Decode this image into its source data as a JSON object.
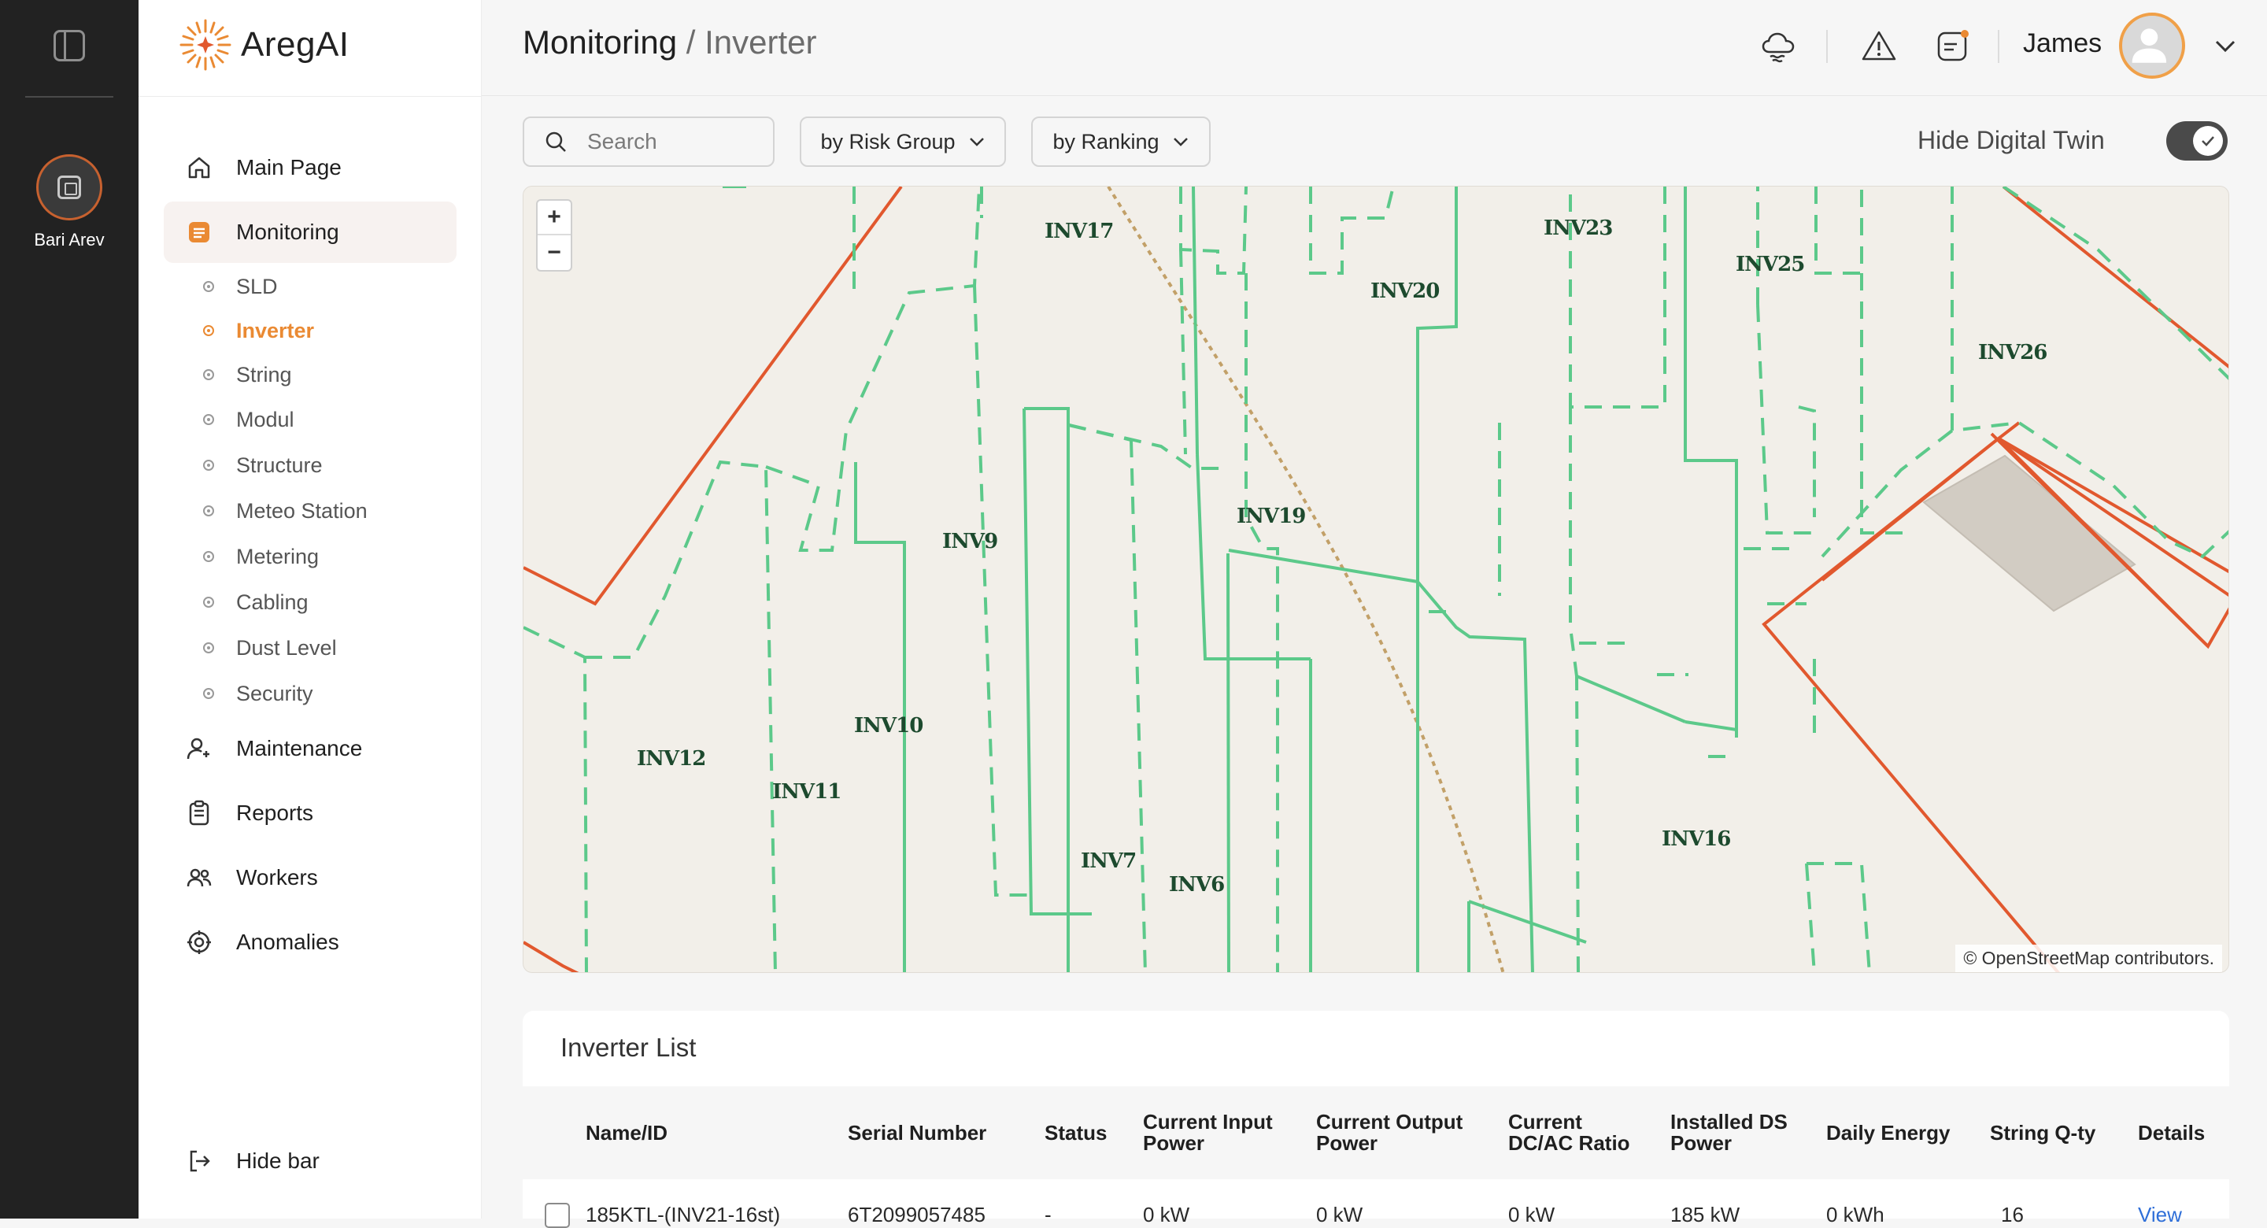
{
  "rail": {
    "plant_name": "Bari Arev"
  },
  "brand": {
    "name": "AregAI",
    "accent": "#ea8a33"
  },
  "sidebar": {
    "items": [
      {
        "label": "Main Page",
        "icon": "home-icon"
      },
      {
        "label": "Monitoring",
        "icon": "monitoring-icon",
        "active": true
      },
      {
        "label": "Maintenance",
        "icon": "maintenance-icon"
      },
      {
        "label": "Reports",
        "icon": "reports-icon"
      },
      {
        "label": "Workers",
        "icon": "workers-icon"
      },
      {
        "label": "Anomalies",
        "icon": "anomalies-icon"
      }
    ],
    "monitoring_sub": [
      "SLD",
      "Inverter",
      "String",
      "Modul",
      "Structure",
      "Meteo Station",
      "Metering",
      "Cabling",
      "Dust Level",
      "Security"
    ],
    "active_sub": "Inverter",
    "hide_bar": "Hide bar"
  },
  "header": {
    "section": "Monitoring",
    "separator": " / ",
    "page": "Inverter",
    "user": "James",
    "icons": [
      "weather-cloud-icon",
      "alert-icon",
      "notes-icon",
      "user-avatar-icon",
      "chevron-down-icon"
    ]
  },
  "filters": {
    "search_placeholder": "Search",
    "risk_group": "by Risk Group",
    "ranking": "by Ranking",
    "twin_label": "Hide Digital Twin",
    "twin_enabled": true
  },
  "map": {
    "zoom_in": "+",
    "zoom_out": "−",
    "attribution": "© OpenStreetMap contributors.",
    "colors": {
      "inverter_boundary": "#5cc98a",
      "site_boundary": "#e1582e",
      "road": "#c2a068",
      "building": "#d2ccc3",
      "background": "#f2efe9"
    },
    "labels": [
      "INV17",
      "INV23",
      "INV25",
      "INV20",
      "INV26",
      "INV19",
      "INV9",
      "INV10",
      "INV12",
      "INV11",
      "INV7",
      "INV6",
      "INV16"
    ]
  },
  "inverter_list": {
    "title": "Inverter List",
    "columns": [
      {
        "line1": "Name/ID",
        "line2": ""
      },
      {
        "line1": "Serial Number",
        "line2": ""
      },
      {
        "line1": "Status",
        "line2": ""
      },
      {
        "line1": "Current Input",
        "line2": "Power"
      },
      {
        "line1": "Current Output",
        "line2": "Power"
      },
      {
        "line1": "Current",
        "line2": "DC/AC Ratio"
      },
      {
        "line1": "Installed DS",
        "line2": "Power"
      },
      {
        "line1": "Daily Energy",
        "line2": ""
      },
      {
        "line1": "String Q-ty",
        "line2": ""
      },
      {
        "line1": "Details",
        "line2": ""
      }
    ],
    "rows": [
      {
        "name": "185KTL-(INV21-16st)",
        "serial": "6T2099057485",
        "status": "-",
        "input_power": "0 kW",
        "output_power": "0 kW",
        "dc_ac_ratio": "0 kW",
        "installed_power": "185 kW",
        "daily_energy": "0 kWh",
        "string_qty": "16",
        "details": "View"
      }
    ]
  }
}
